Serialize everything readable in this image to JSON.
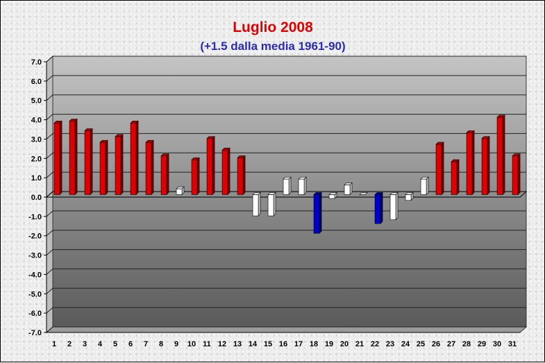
{
  "chart_data": {
    "type": "bar",
    "title": "Luglio 2008",
    "subtitle": "(+1.5 dalla media 1961-90)",
    "xlabel": "",
    "ylabel": "",
    "ylim": [
      -7.0,
      7.0
    ],
    "yticks": [
      "7.0",
      "6.0",
      "5.0",
      "4.0",
      "3.0",
      "2.0",
      "1.0",
      "0.0",
      "-1.0",
      "-2.0",
      "-3.0",
      "-4.0",
      "-5.0",
      "-6.0",
      "-7.0"
    ],
    "categories": [
      "1",
      "2",
      "3",
      "4",
      "5",
      "6",
      "7",
      "8",
      "9",
      "10",
      "11",
      "12",
      "13",
      "14",
      "15",
      "16",
      "17",
      "18",
      "19",
      "20",
      "21",
      "22",
      "23",
      "24",
      "25",
      "26",
      "27",
      "28",
      "29",
      "30",
      "31"
    ],
    "values": [
      3.7,
      3.8,
      3.3,
      2.7,
      3.0,
      3.7,
      2.7,
      2.0,
      0.3,
      1.8,
      2.9,
      2.3,
      1.9,
      -1.1,
      -1.1,
      0.8,
      0.8,
      -2.0,
      -0.2,
      0.5,
      0.0,
      -1.5,
      -1.3,
      -0.3,
      0.8,
      2.6,
      1.7,
      3.2,
      2.9,
      4.0,
      2.0
    ],
    "grid": true,
    "colors": {
      "warm": "#e00000",
      "cold": "#0000cc",
      "neutral": "#ffffff",
      "title": "#e00000",
      "subtitle": "#2b2bb0"
    }
  }
}
